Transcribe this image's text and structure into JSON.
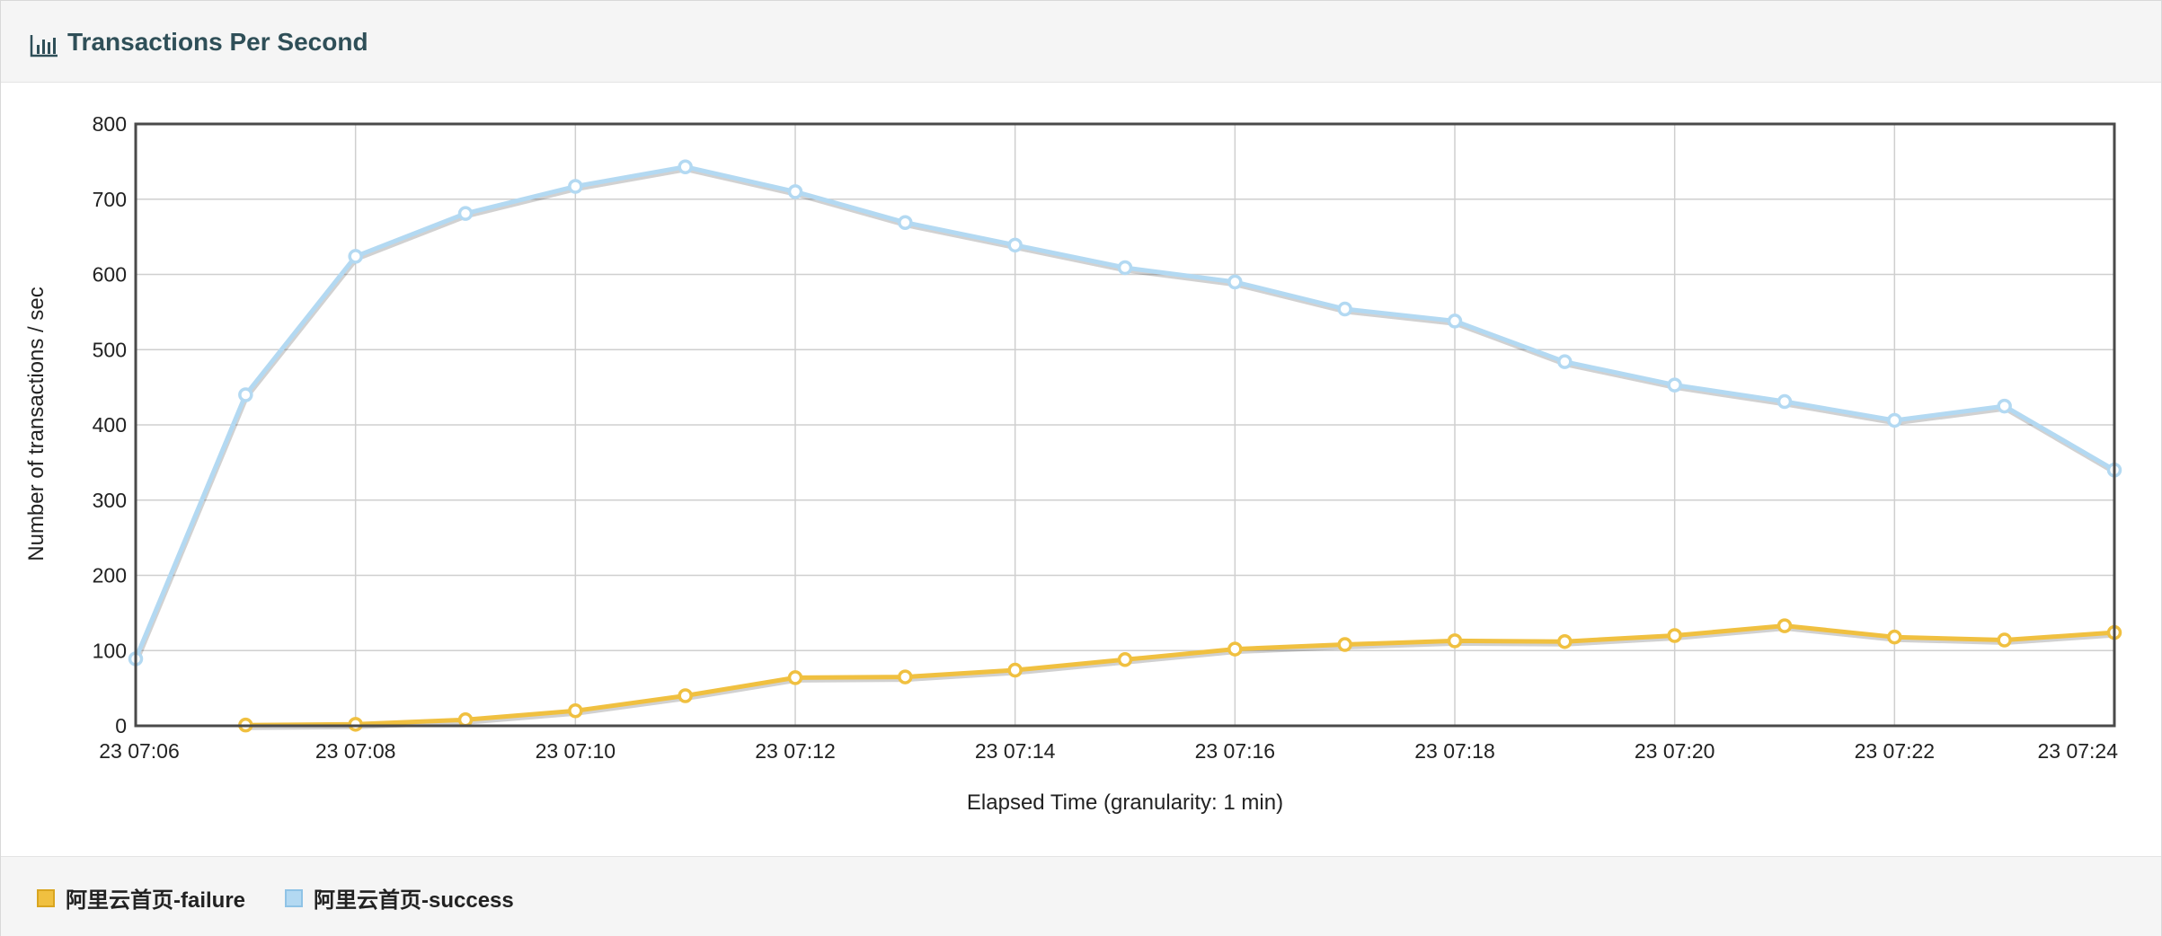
{
  "panel": {
    "title": "Transactions Per Second",
    "icon": "bar-chart-icon"
  },
  "colors": {
    "failure": "#f0c040",
    "success": "#b3d9f2",
    "title": "#2f4f58",
    "grid": "#cfcfcf",
    "frame": "#4a4a4a"
  },
  "chart_data": {
    "type": "line",
    "title": "",
    "xlabel": "Elapsed Time (granularity: 1 min)",
    "ylabel": "Number of transactions / sec",
    "ylim": [
      0,
      800
    ],
    "yticks": [
      0,
      100,
      200,
      300,
      400,
      500,
      600,
      700,
      800
    ],
    "xticks": [
      "23 07:06",
      "23 07:08",
      "23 07:10",
      "23 07:12",
      "23 07:14",
      "23 07:16",
      "23 07:18",
      "23 07:20",
      "23 07:22",
      "23 07:24"
    ],
    "x_range_minutes": [
      "07:06",
      "07:24"
    ],
    "grid": true,
    "legend_position": "bottom",
    "series": [
      {
        "name": "阿里云首页-failure",
        "color": "#f0c040",
        "x": [
          "07:07",
          "07:08",
          "07:09",
          "07:10",
          "07:11",
          "07:12",
          "07:13",
          "07:14",
          "07:15",
          "07:16",
          "07:17",
          "07:18",
          "07:19",
          "07:20",
          "07:21",
          "07:22",
          "07:23",
          "07:24"
        ],
        "values": [
          1,
          2,
          8,
          20,
          40,
          64,
          65,
          74,
          88,
          102,
          108,
          113,
          112,
          120,
          133,
          118,
          114,
          124
        ]
      },
      {
        "name": "阿里云首页-success",
        "color": "#b3d9f2",
        "x": [
          "07:06",
          "07:07",
          "07:08",
          "07:09",
          "07:10",
          "07:11",
          "07:12",
          "07:13",
          "07:14",
          "07:15",
          "07:16",
          "07:17",
          "07:18",
          "07:19",
          "07:20",
          "07:21",
          "07:22",
          "07:23",
          "07:24"
        ],
        "values": [
          89,
          440,
          624,
          681,
          717,
          743,
          710,
          669,
          639,
          609,
          590,
          554,
          538,
          484,
          453,
          431,
          406,
          425,
          340
        ]
      }
    ]
  },
  "legend": [
    {
      "label": "阿里云首页-failure",
      "color": "#f0c040"
    },
    {
      "label": "阿里云首页-success",
      "color": "#b3d9f2"
    }
  ]
}
